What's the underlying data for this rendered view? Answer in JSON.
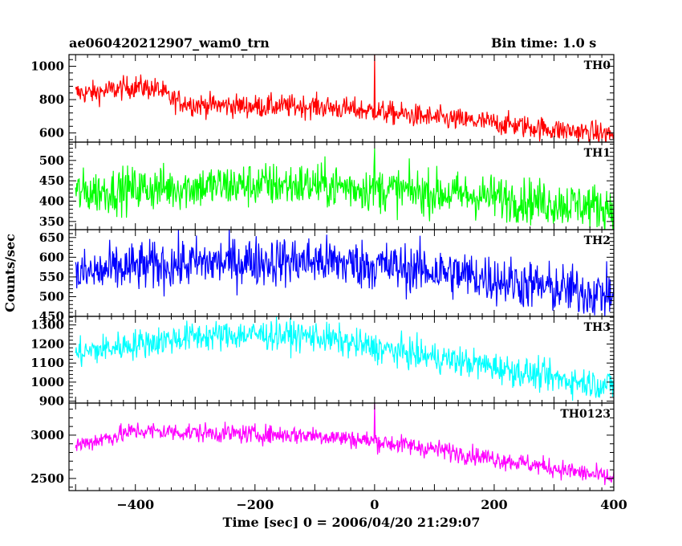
{
  "header": {
    "title": "ae060420212907_wam0_trn",
    "bin_time": "Bin time: 1.0 s"
  },
  "chart_data": {
    "type": "line",
    "xlabel": "Time [sec] 0 = 2006/04/20 21:29:07",
    "ylabel": "Counts/sec",
    "xlim": [
      -511,
      400
    ],
    "x_ticks": [
      -400,
      -200,
      0,
      200,
      400
    ],
    "grid": false,
    "panels": [
      {
        "name": "TH0",
        "color": "#ff0000",
        "ylim": [
          545,
          1070
        ],
        "y_ticks": [
          600,
          800,
          1000
        ],
        "trend": {
          "x": [
            -500,
            -470,
            -400,
            -360,
            -340,
            -300,
            -200,
            -100,
            0,
            100,
            200,
            300,
            400
          ],
          "y": [
            840,
            840,
            880,
            860,
            800,
            770,
            760,
            760,
            730,
            690,
            660,
            620,
            590
          ]
        },
        "noise": 35,
        "spikes": [
          {
            "x": 0,
            "y": 1070
          }
        ]
      },
      {
        "name": "TH1",
        "color": "#00ff00",
        "ylim": [
          330,
          545
        ],
        "y_ticks": [
          350,
          400,
          450,
          500
        ],
        "trend": {
          "x": [
            -500,
            -400,
            -300,
            -200,
            -100,
            0,
            100,
            200,
            300,
            400
          ],
          "y": [
            420,
            430,
            435,
            440,
            440,
            430,
            420,
            410,
            395,
            385
          ]
        },
        "noise": 28,
        "spikes": [
          {
            "x": 0,
            "y": 530
          }
        ]
      },
      {
        "name": "TH2",
        "color": "#0000ff",
        "ylim": [
          450,
          670
        ],
        "y_ticks": [
          450,
          500,
          550,
          600,
          650
        ],
        "trend": {
          "x": [
            -500,
            -400,
            -300,
            -200,
            -100,
            0,
            100,
            200,
            300,
            400
          ],
          "y": [
            555,
            575,
            585,
            590,
            590,
            580,
            565,
            545,
            520,
            505
          ]
        },
        "noise": 32,
        "spikes": []
      },
      {
        "name": "TH3",
        "color": "#00ffff",
        "ylim": [
          890,
          1345
        ],
        "y_ticks": [
          900,
          1000,
          1100,
          1200,
          1300
        ],
        "trend": {
          "x": [
            -500,
            -400,
            -300,
            -200,
            -100,
            0,
            100,
            200,
            300,
            400
          ],
          "y": [
            1150,
            1200,
            1240,
            1250,
            1240,
            1180,
            1130,
            1080,
            1020,
            980
          ]
        },
        "noise": 40,
        "spikes": []
      },
      {
        "name": "TH0123",
        "color": "#ff00ff",
        "ylim": [
          2360,
          3370
        ],
        "y_ticks": [
          2500,
          3000
        ],
        "trend": {
          "x": [
            -500,
            -400,
            -300,
            -200,
            -100,
            0,
            100,
            200,
            300,
            400
          ],
          "y": [
            2880,
            3050,
            3030,
            3010,
            3000,
            2930,
            2840,
            2730,
            2620,
            2500
          ]
        },
        "noise": 55,
        "spikes": [
          {
            "x": 0,
            "y": 3370
          }
        ]
      }
    ]
  }
}
